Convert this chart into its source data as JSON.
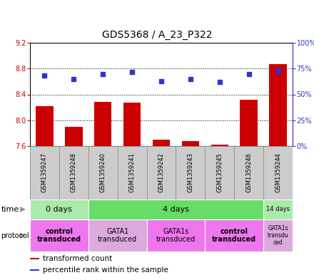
{
  "title": "GDS5368 / A_23_P322",
  "samples": [
    "GSM1359247",
    "GSM1359248",
    "GSM1359240",
    "GSM1359241",
    "GSM1359242",
    "GSM1359243",
    "GSM1359245",
    "GSM1359246",
    "GSM1359244"
  ],
  "bar_values": [
    8.22,
    7.9,
    8.28,
    8.27,
    7.7,
    7.68,
    7.62,
    8.32,
    8.87
  ],
  "scatter_values": [
    68,
    65,
    70,
    72,
    63,
    65,
    62,
    70,
    73
  ],
  "ylim_left": [
    7.6,
    9.2
  ],
  "ylim_right": [
    0,
    100
  ],
  "yticks_left": [
    7.6,
    8.0,
    8.4,
    8.8,
    9.2
  ],
  "yticks_right": [
    0,
    25,
    50,
    75,
    100
  ],
  "ytick_labels_right": [
    "0%",
    "25%",
    "50%",
    "75%",
    "100%"
  ],
  "bar_color": "#cc0000",
  "scatter_color": "#3333cc",
  "bar_bottom": 7.6,
  "time_groups": [
    {
      "label": "0 days",
      "start": 0,
      "end": 2,
      "color": "#aaeaaa"
    },
    {
      "label": "4 days",
      "start": 2,
      "end": 8,
      "color": "#66dd66"
    },
    {
      "label": "14 days",
      "start": 8,
      "end": 9,
      "color": "#aaeaaa"
    }
  ],
  "protocol_groups": [
    {
      "label": "control\ntransduced",
      "start": 0,
      "end": 2,
      "color": "#ee77ee",
      "bold": true
    },
    {
      "label": "GATA1\ntransduced",
      "start": 2,
      "end": 4,
      "color": "#ddaadd",
      "bold": false
    },
    {
      "label": "GATA1s\ntransduced",
      "start": 4,
      "end": 6,
      "color": "#ee77ee",
      "bold": false
    },
    {
      "label": "control\ntransduced",
      "start": 6,
      "end": 8,
      "color": "#ee77ee",
      "bold": true
    },
    {
      "label": "GATA1s\ntransdu\nced",
      "start": 8,
      "end": 9,
      "color": "#ddaadd",
      "bold": false
    }
  ],
  "legend_items": [
    {
      "label": "transformed count",
      "color": "#cc0000"
    },
    {
      "label": "percentile rank within the sample",
      "color": "#3333cc"
    }
  ],
  "sample_bg_color": "#cccccc",
  "sample_border_color": "#aaaaaa",
  "left_label_color": "#cc0000",
  "right_label_color": "#3333cc"
}
